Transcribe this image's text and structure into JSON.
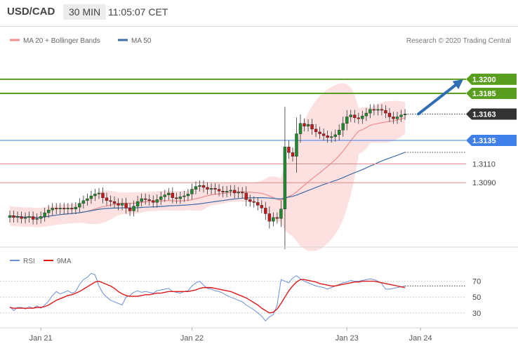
{
  "header": {
    "symbol": "USD/CAD",
    "timeframe": "30 MIN",
    "time": "11:05:07 CET"
  },
  "colors": {
    "bollinger": "#f08c8c",
    "bollinger_fill": "#fde0e0",
    "ma50": "#3c6ea8",
    "resistance": "#5a9e1f",
    "pivot": "#3f7fe8",
    "support": "#e88a8a",
    "current": "#333333",
    "candle_up": "#1f8a2f",
    "candle_down": "#c4191c",
    "arrow": "#2f6db5",
    "rsi": "#6a8fd8",
    "rsi_ma": "#e01818"
  },
  "legend": {
    "bands": "MA 20 + Bollinger Bands",
    "ma50": "MA 50"
  },
  "copyright": "Research © 2020 Trading Central",
  "rsi_legend": {
    "rsi": "RSI",
    "ma": "9MA"
  },
  "chart_data": [
    {
      "type": "candlestick",
      "title": "USD/CAD",
      "ylim": [
        1.3023,
        1.3232
      ],
      "x_ticks": [
        "Jan 21",
        "Jan 22",
        "Jan 23",
        "Jan 24"
      ],
      "grid": false,
      "levels": [
        {
          "label": "1.3200",
          "value": 1.32,
          "kind": "resistance"
        },
        {
          "label": "1.3185",
          "value": 1.3185,
          "kind": "resistance"
        },
        {
          "label": "1.3163",
          "value": 1.3163,
          "kind": "current"
        },
        {
          "label": "1.3135",
          "value": 1.3135,
          "kind": "pivot"
        },
        {
          "label": "1.3110",
          "value": 1.311,
          "kind": "support"
        },
        {
          "label": "1.3090",
          "value": 1.309,
          "kind": "support"
        }
      ],
      "forecast_arrow": {
        "from": 1.3163,
        "to": 1.32
      },
      "close": [
        1.3055,
        1.3053,
        1.3054,
        1.3052,
        1.3053,
        1.3054,
        1.3051,
        1.3052,
        1.3054,
        1.3058,
        1.3061,
        1.3063,
        1.3062,
        1.3063,
        1.3062,
        1.3063,
        1.3062,
        1.3064,
        1.3068,
        1.3071,
        1.3073,
        1.3076,
        1.3078,
        1.3079,
        1.3074,
        1.3071,
        1.307,
        1.3068,
        1.3066,
        1.3068,
        1.3063,
        1.306,
        1.3065,
        1.307,
        1.3073,
        1.3072,
        1.3071,
        1.3069,
        1.3072,
        1.3075,
        1.3077,
        1.3079,
        1.3074,
        1.3073,
        1.3075,
        1.3076,
        1.3078,
        1.3083,
        1.3086,
        1.3087,
        1.3085,
        1.3083,
        1.3084,
        1.3083,
        1.3081,
        1.308,
        1.3081,
        1.3082,
        1.3079,
        1.308,
        1.3079,
        1.3072,
        1.307,
        1.3069,
        1.3066,
        1.3063,
        1.3057,
        1.3049,
        1.3053,
        1.3052,
        1.3062,
        1.3128,
        1.3122,
        1.3118,
        1.3142,
        1.3153,
        1.315,
        1.3152,
        1.3147,
        1.3144,
        1.3142,
        1.314,
        1.3138,
        1.3139,
        1.3141,
        1.3146,
        1.3153,
        1.316,
        1.3162,
        1.3159,
        1.3158,
        1.3161,
        1.3164,
        1.3168,
        1.3167,
        1.3168,
        1.3167,
        1.3164,
        1.316,
        1.3158,
        1.316,
        1.3162,
        1.3163
      ]
    },
    {
      "type": "line",
      "title": "RSI",
      "ylim": [
        13,
        90
      ],
      "y_ticks": [
        30,
        50,
        70
      ],
      "series": [
        {
          "name": "RSI",
          "values": [
            38,
            33,
            37,
            37,
            35,
            38,
            36,
            39,
            36,
            40,
            45,
            52,
            57,
            54,
            56,
            58,
            55,
            57,
            66,
            72,
            75,
            80,
            78,
            64,
            55,
            50,
            46,
            44,
            42,
            40,
            50,
            52,
            56,
            58,
            56,
            57,
            56,
            55,
            58,
            59,
            60,
            61,
            57,
            56,
            55,
            57,
            58,
            64,
            68,
            70,
            65,
            61,
            60,
            58,
            57,
            55,
            52,
            50,
            48,
            46,
            44,
            40,
            37,
            34,
            30,
            26,
            20,
            25,
            28,
            40,
            72,
            70,
            68,
            74,
            77,
            73,
            70,
            68,
            66,
            64,
            63,
            62,
            60,
            62,
            64,
            66,
            68,
            69,
            71,
            70,
            70,
            71,
            72,
            73,
            72,
            70,
            67,
            60,
            60,
            61,
            62,
            63,
            64
          ]
        },
        {
          "name": "9MA",
          "values": [
            37,
            36,
            36,
            36,
            36,
            36,
            36,
            37,
            37,
            38,
            40,
            43,
            46,
            48,
            50,
            52,
            53,
            55,
            57,
            60,
            63,
            66,
            69,
            70,
            68,
            66,
            64,
            61,
            57,
            54,
            52,
            51,
            51,
            51,
            52,
            53,
            53,
            54,
            55,
            55,
            56,
            57,
            57,
            57,
            57,
            57,
            57,
            58,
            59,
            61,
            62,
            62,
            62,
            61,
            60,
            59,
            58,
            57,
            55,
            53,
            51,
            49,
            46,
            43,
            40,
            36,
            33,
            30,
            31,
            35,
            42,
            50,
            58,
            64,
            69,
            72,
            72,
            71,
            70,
            69,
            67,
            66,
            65,
            64,
            64,
            65,
            66,
            67,
            68,
            69,
            69,
            70,
            70,
            70,
            70,
            69,
            68,
            67,
            66,
            65,
            64,
            63,
            62
          ]
        }
      ],
      "x_ticks": [
        "Jan 21",
        "Jan 22",
        "Jan 23",
        "Jan 24"
      ]
    }
  ]
}
